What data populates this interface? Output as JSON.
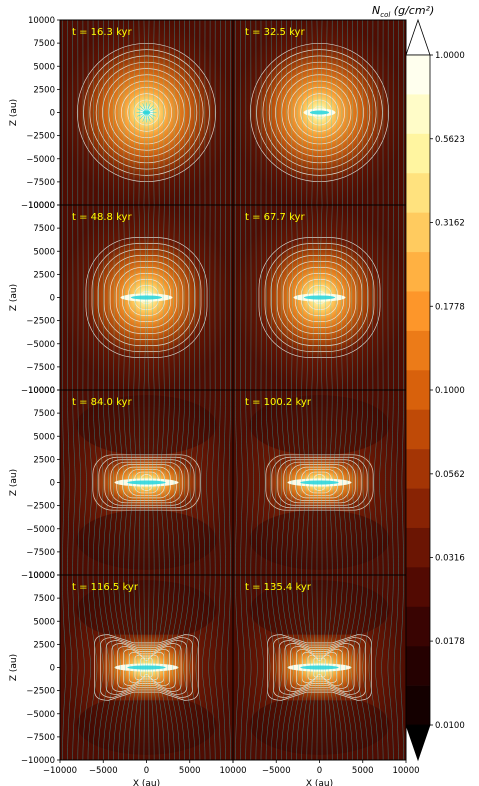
{
  "chart_data": {
    "type": "heatmap",
    "xlabel": "X (au)",
    "ylabel": "Z (au)",
    "xlim": [
      -10000,
      10000
    ],
    "ylim": [
      -10000,
      10000
    ],
    "x_ticks": [
      "−10000",
      "−5000",
      "0",
      "5000",
      "10000"
    ],
    "y_ticks": [
      "10000",
      "7500",
      "5000",
      "2500",
      "0",
      "−2500",
      "−5000",
      "−7500",
      "−10000"
    ],
    "x_tick_values": [
      -10000,
      -5000,
      0,
      5000,
      10000
    ],
    "y_tick_values": [
      10000,
      7500,
      5000,
      2500,
      0,
      -2500,
      -5000,
      -7500,
      -10000
    ],
    "grid": false,
    "colorbar": {
      "label": "N_col (g/cm²)",
      "label_text": "N",
      "label_sub": "col",
      "label_units": " (g/cm²)",
      "scale": "log",
      "extend": "both",
      "ticks": [
        "1.0000",
        "0.5623",
        "0.3162",
        "0.1778",
        "0.1000",
        "0.0562",
        "0.0316",
        "0.0178",
        "0.0100"
      ],
      "tick_values": [
        1.0,
        0.5623,
        0.3162,
        0.1778,
        0.1,
        0.0562,
        0.0316,
        0.0178,
        0.01
      ],
      "colors": [
        "#ffffee",
        "#fffcc8",
        "#fff5a0",
        "#ffe27e",
        "#ffcb5f",
        "#ffb142",
        "#fd962a",
        "#ec7b18",
        "#d8610c",
        "#bf4a07",
        "#a43505",
        "#882304",
        "#6b1503",
        "#520a02",
        "#390402",
        "#250101",
        "#140000"
      ],
      "under_color": "#000000",
      "over_color": "#ffffff"
    },
    "panels": [
      {
        "time_label": "t = 16.3 kyr",
        "time_kyr": 16.3,
        "shape": "sphere"
      },
      {
        "time_label": "t = 32.5 kyr",
        "time_kyr": 32.5,
        "shape": "sphere"
      },
      {
        "time_label": "t = 48.8 kyr",
        "time_kyr": 48.8,
        "shape": "oblate"
      },
      {
        "time_label": "t = 67.7 kyr",
        "time_kyr": 67.7,
        "shape": "oblate"
      },
      {
        "time_label": "t = 84.0 kyr",
        "time_kyr": 84.0,
        "shape": "box"
      },
      {
        "time_label": "t = 100.2 kyr",
        "time_kyr": 100.2,
        "shape": "box"
      },
      {
        "time_label": "t = 116.5 kyr",
        "time_kyr": 116.5,
        "shape": "hourglass"
      },
      {
        "time_label": "t = 135.4 kyr",
        "time_kyr": 135.4,
        "shape": "hourglass"
      }
    ],
    "colors": {
      "background": "#5e1203",
      "contour": "#f4f0e6",
      "field_lines": "#2fd6dc",
      "time_text": "#ffff00"
    }
  }
}
